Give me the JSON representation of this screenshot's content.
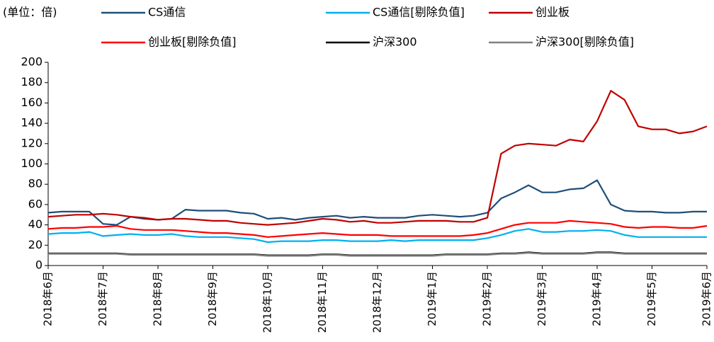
{
  "chart_data": {
    "type": "line",
    "unit_label": "(单位：倍)",
    "x": [
      0,
      0.25,
      0.5,
      0.75,
      1,
      1.25,
      1.5,
      1.75,
      2,
      2.25,
      2.5,
      2.75,
      3,
      3.25,
      3.5,
      3.75,
      4,
      4.25,
      4.5,
      4.75,
      5,
      5.25,
      5.5,
      5.75,
      6,
      6.25,
      6.5,
      6.75,
      7,
      7.25,
      7.5,
      7.75,
      8,
      8.25,
      8.5,
      8.75,
      9,
      9.25,
      9.5,
      9.75,
      10,
      10.25,
      10.5,
      10.75,
      11,
      11.25,
      11.5,
      11.75,
      12
    ],
    "xlim": [
      0,
      12
    ],
    "xticks": [
      {
        "value": 0,
        "label": "2018年6月"
      },
      {
        "value": 1,
        "label": "2018年7月"
      },
      {
        "value": 2,
        "label": "2018年8月"
      },
      {
        "value": 3,
        "label": "2018年9月"
      },
      {
        "value": 4,
        "label": "2018年10月"
      },
      {
        "value": 5,
        "label": "2018年11月"
      },
      {
        "value": 6,
        "label": "2018年12月"
      },
      {
        "value": 7,
        "label": "2019年1月"
      },
      {
        "value": 8,
        "label": "2019年2月"
      },
      {
        "value": 9,
        "label": "2019年3月"
      },
      {
        "value": 10,
        "label": "2019年4月"
      },
      {
        "value": 11,
        "label": "2019年5月"
      },
      {
        "value": 12,
        "label": "2019年6月"
      }
    ],
    "ylim": [
      0,
      200
    ],
    "yticks": [
      0,
      20,
      40,
      60,
      80,
      100,
      120,
      140,
      160,
      180,
      200
    ],
    "series": [
      {
        "name": "CS通信",
        "color": "#1f4e79",
        "values": [
          52,
          53,
          53,
          53,
          41,
          40,
          48,
          46,
          45,
          46,
          55,
          54,
          54,
          54,
          52,
          51,
          46,
          47,
          45,
          47,
          48,
          49,
          47,
          48,
          47,
          47,
          47,
          49,
          50,
          49,
          48,
          49,
          52,
          66,
          72,
          79,
          72,
          72,
          75,
          76,
          84,
          60,
          54,
          53,
          53,
          52,
          52,
          53,
          53
        ]
      },
      {
        "name": "CS通信[剔除负值]",
        "color": "#00b0f0",
        "values": [
          31,
          32,
          32,
          33,
          29,
          30,
          31,
          30,
          30,
          31,
          29,
          28,
          28,
          28,
          27,
          26,
          23,
          24,
          24,
          24,
          25,
          25,
          24,
          24,
          24,
          25,
          24,
          25,
          25,
          25,
          25,
          25,
          27,
          30,
          34,
          36,
          33,
          33,
          34,
          34,
          35,
          34,
          30,
          28,
          28,
          28,
          28,
          28,
          28
        ]
      },
      {
        "name": "创业板",
        "color": "#c00000",
        "values": [
          48,
          49,
          50,
          50,
          51,
          50,
          48,
          47,
          45,
          46,
          46,
          45,
          44,
          44,
          42,
          41,
          40,
          41,
          42,
          44,
          46,
          45,
          43,
          44,
          42,
          42,
          43,
          44,
          44,
          44,
          43,
          43,
          47,
          110,
          118,
          120,
          119,
          118,
          124,
          122,
          142,
          172,
          163,
          137,
          134,
          134,
          130,
          132,
          137
        ]
      },
      {
        "name": "创业板[剔除负值]",
        "color": "#ff0000",
        "values": [
          36,
          37,
          37,
          38,
          38,
          39,
          36,
          35,
          35,
          35,
          34,
          33,
          32,
          32,
          31,
          30,
          28,
          29,
          30,
          31,
          32,
          31,
          30,
          30,
          30,
          29,
          29,
          29,
          29,
          29,
          29,
          30,
          32,
          36,
          40,
          42,
          42,
          42,
          44,
          43,
          42,
          41,
          38,
          37,
          38,
          38,
          37,
          37,
          39
        ]
      },
      {
        "name": "沪深300",
        "color": "#000000",
        "values": [
          12,
          12,
          12,
          12,
          12,
          12,
          11,
          11,
          11,
          11,
          11,
          11,
          11,
          11,
          11,
          11,
          10,
          10,
          10,
          10,
          11,
          11,
          10,
          10,
          10,
          10,
          10,
          10,
          10,
          11,
          11,
          11,
          11,
          12,
          12,
          13,
          12,
          12,
          12,
          12,
          13,
          13,
          12,
          12,
          12,
          12,
          12,
          12,
          12
        ]
      },
      {
        "name": "沪深300[剔除负值]",
        "color": "#808080",
        "values": [
          11.5,
          11.5,
          11.5,
          11.5,
          11.5,
          11.5,
          10.5,
          10.5,
          10.5,
          10.5,
          10.5,
          10.5,
          10.5,
          10.5,
          10.5,
          10.5,
          9.5,
          9.5,
          9.5,
          9.5,
          10.5,
          10.5,
          9.5,
          9.5,
          9.5,
          9.5,
          9.5,
          9.5,
          9.5,
          10.5,
          10.5,
          10.5,
          10.5,
          11.5,
          11.5,
          12.5,
          11.5,
          11.5,
          11.5,
          11.5,
          12.5,
          12.5,
          11.5,
          11.5,
          11.5,
          11.5,
          11.5,
          11.5,
          11.5
        ]
      }
    ]
  }
}
